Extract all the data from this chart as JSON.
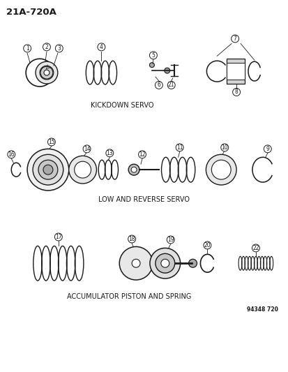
{
  "title": "21A-720A",
  "bg_color": "#ffffff",
  "line_color": "#1a1a1a",
  "section1_label": "KICKDOWN SERVO",
  "section2_label": "LOW AND REVERSE SERVO",
  "section3_label": "ACCUMULATOR PISTON AND SPRING",
  "catalog_number": "94348 720",
  "figsize": [
    4.14,
    5.33
  ],
  "dpi": 100
}
